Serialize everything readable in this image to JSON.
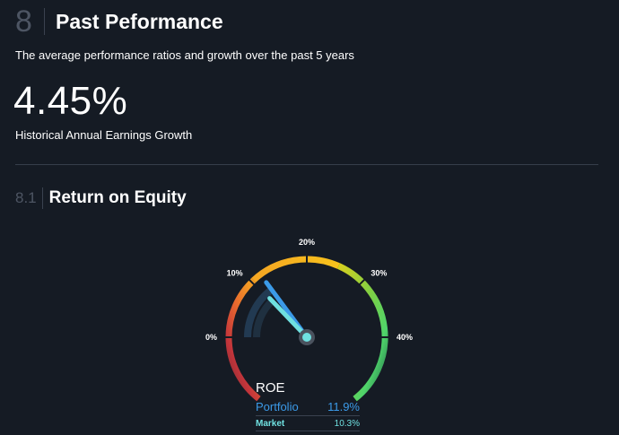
{
  "section": {
    "number": "8",
    "title": "Past Peformance"
  },
  "subtitle": "The average performance ratios and growth over the past 5 years",
  "headline": {
    "value": "4.45%",
    "label": "Historical Annual Earnings Growth"
  },
  "subsection": {
    "number": "8.1",
    "title": "Return on Equity"
  },
  "gauge": {
    "ticks": [
      "0%",
      "10%",
      "20%",
      "30%",
      "40%"
    ],
    "min": 0,
    "max": 40,
    "portfolio_value": 11.9,
    "market_value": 10.3,
    "colors": {
      "portfolio": "#3b9ae8",
      "market": "#6fe0e0"
    }
  },
  "legend": {
    "title": "ROE",
    "portfolio": {
      "label": "Portfolio",
      "value": "11.9%"
    },
    "market": {
      "label": "Market",
      "value": "10.3%"
    }
  }
}
